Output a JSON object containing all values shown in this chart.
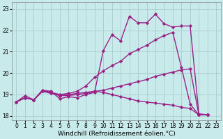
{
  "background_color": "#c8eaea",
  "grid_color": "#aacccc",
  "line_color": "#992288",
  "marker": "D",
  "markersize": 2.2,
  "linewidth": 1.0,
  "xlabel": "Windchill (Refroidissement éolien,°C)",
  "xlabel_fontsize": 6.5,
  "tick_fontsize": 5.5,
  "xlim": [
    -0.5,
    23.5
  ],
  "ylim": [
    17.8,
    23.3
  ],
  "yticks": [
    18,
    19,
    20,
    21,
    22,
    23
  ],
  "xticks": [
    0,
    1,
    2,
    3,
    4,
    5,
    6,
    7,
    8,
    9,
    10,
    11,
    12,
    13,
    14,
    15,
    16,
    17,
    18,
    19,
    20,
    21,
    22,
    23
  ],
  "series": [
    {
      "x": [
        0,
        1,
        2,
        3,
        4,
        5,
        6,
        7,
        8,
        9,
        10,
        11,
        12,
        13,
        14,
        15,
        16,
        17,
        18,
        19,
        20,
        21,
        22
      ],
      "y": [
        18.65,
        18.95,
        18.75,
        19.2,
        19.15,
        18.8,
        18.9,
        18.85,
        19.0,
        19.1,
        21.05,
        21.8,
        21.5,
        22.65,
        22.35,
        22.35,
        22.75,
        22.3,
        22.15,
        22.2,
        22.2,
        18.1,
        18.05
      ]
    },
    {
      "x": [
        0,
        1,
        2,
        3,
        4,
        5,
        6,
        7,
        8,
        9,
        10,
        11,
        12,
        13,
        14,
        15,
        16,
        17,
        18,
        19,
        20,
        21,
        22
      ],
      "y": [
        18.65,
        18.85,
        18.75,
        19.2,
        19.1,
        19.0,
        19.05,
        19.15,
        19.4,
        19.8,
        20.1,
        20.35,
        20.55,
        20.9,
        21.1,
        21.3,
        21.55,
        21.75,
        21.9,
        20.25,
        18.55,
        18.05,
        18.05
      ]
    },
    {
      "x": [
        0,
        1,
        2,
        3,
        4,
        5,
        6,
        7,
        8,
        9,
        10,
        11,
        12,
        13,
        14,
        15,
        16,
        17,
        18,
        19,
        20,
        21,
        22
      ],
      "y": [
        18.65,
        18.85,
        18.75,
        19.15,
        19.1,
        18.95,
        19.0,
        19.05,
        19.1,
        19.15,
        19.1,
        19.0,
        18.9,
        18.8,
        18.7,
        18.65,
        18.6,
        18.55,
        18.5,
        18.4,
        18.35,
        18.05,
        18.05
      ]
    },
    {
      "x": [
        0,
        1,
        2,
        3,
        4,
        5,
        6,
        7,
        8,
        9,
        10,
        11,
        12,
        13,
        14,
        15,
        16,
        17,
        18,
        19,
        20,
        21,
        22
      ],
      "y": [
        18.65,
        18.85,
        18.75,
        19.15,
        19.05,
        18.95,
        18.95,
        19.0,
        19.05,
        19.15,
        19.2,
        19.3,
        19.4,
        19.5,
        19.6,
        19.7,
        19.85,
        19.95,
        20.05,
        20.15,
        20.2,
        18.05,
        18.05
      ]
    }
  ]
}
